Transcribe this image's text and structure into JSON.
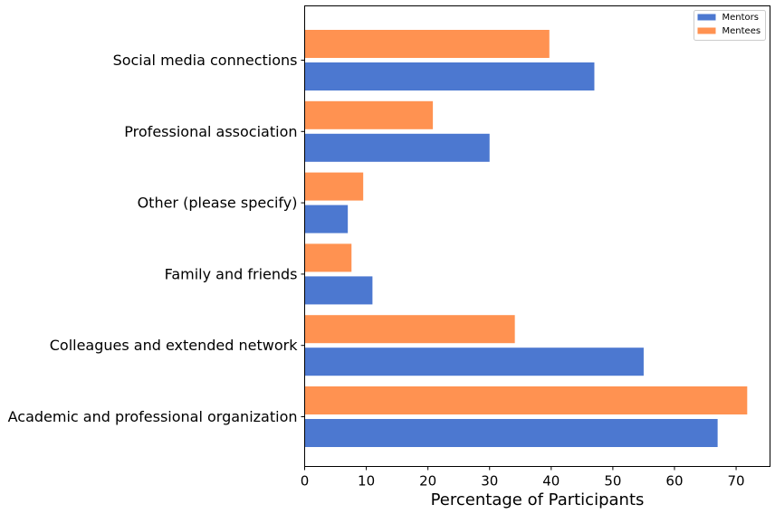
{
  "chart_data": {
    "type": "bar",
    "orientation": "horizontal",
    "title": "",
    "xlabel": "Percentage of Participants",
    "ylabel": "",
    "xlim": [
      0,
      75.5
    ],
    "xticks": [
      0,
      10,
      20,
      30,
      40,
      50,
      60,
      70
    ],
    "categories": [
      "Academic and professional organization",
      "Colleagues and extended network",
      "Family and friends",
      "Other (please specify)",
      "Professional association",
      "Social media connections"
    ],
    "series": [
      {
        "name": "Mentors",
        "color": "#4c78d0",
        "values": [
          67,
          55,
          11,
          7,
          30,
          47
        ]
      },
      {
        "name": "Mentees",
        "color": "#ff9251",
        "values": [
          71.8,
          34.1,
          7.6,
          9.5,
          20.8,
          39.7
        ]
      }
    ],
    "legend": {
      "position": "top-right",
      "entries": [
        "Mentors",
        "Mentees"
      ]
    },
    "grid": false
  }
}
